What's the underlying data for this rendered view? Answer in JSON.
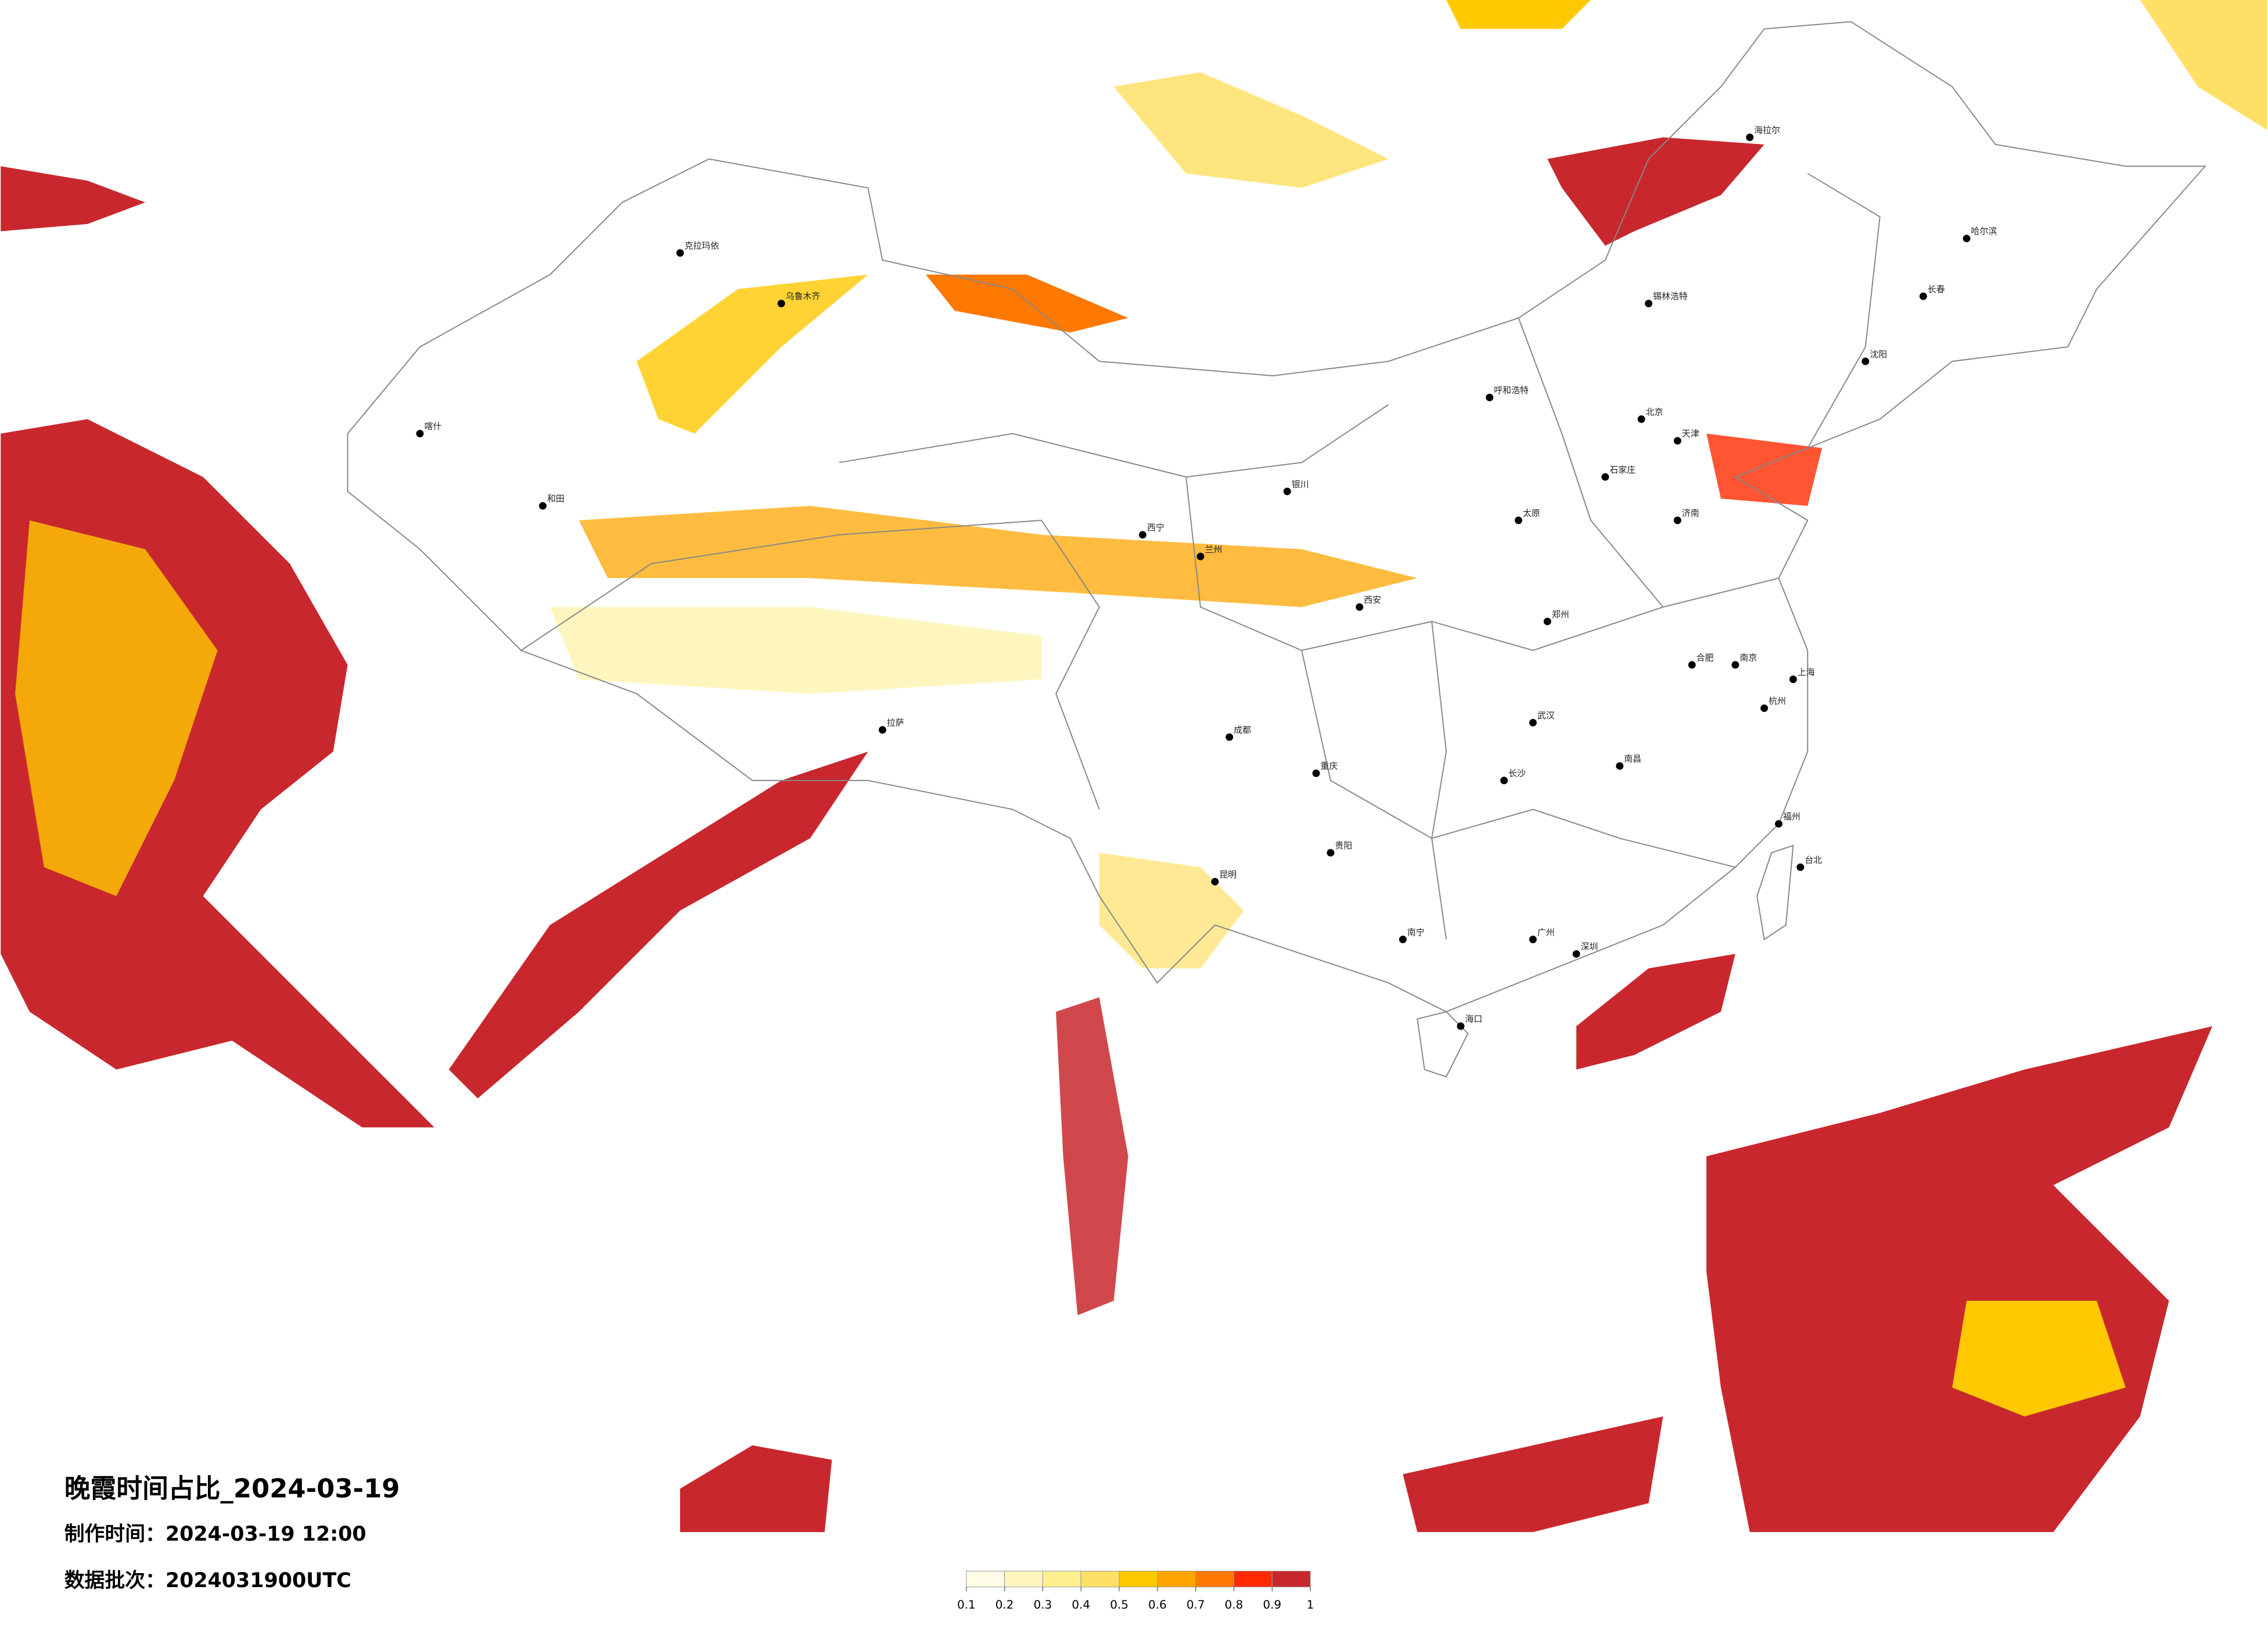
{
  "title": "晚霞时间占比_2024-03-19",
  "made_time": "制作时间：2024-03-19 12:00",
  "data_batch": "数据批次：2024031900UTC",
  "colorbar": {
    "ticks": [
      0.1,
      0.2,
      0.3,
      0.4,
      0.5,
      0.6,
      0.7,
      0.8,
      0.9,
      1
    ],
    "colors": [
      "#fffce8",
      "#fff6bf",
      "#ffef8f",
      "#ffe066",
      "#ffc800",
      "#ffa500",
      "#ff7800",
      "#ff2a00",
      "#c8282d"
    ]
  },
  "cities": [
    "北京",
    "天津",
    "石家庄",
    "太原",
    "呼和浩特",
    "济南",
    "郑州",
    "西安",
    "银川",
    "兰州",
    "西宁",
    "乌鲁木齐",
    "拉萨",
    "成都",
    "重庆",
    "贵阳",
    "昆明",
    "南宁",
    "海口",
    "广州",
    "深圳",
    "长沙",
    "武汉",
    "南昌",
    "合肥",
    "南京",
    "上海",
    "杭州",
    "福州",
    "沈阳",
    "长春",
    "哈尔滨",
    "克拉玛依",
    "和田",
    "喀什",
    "海拉尔",
    "锡林浩特",
    "台北"
  ]
}
